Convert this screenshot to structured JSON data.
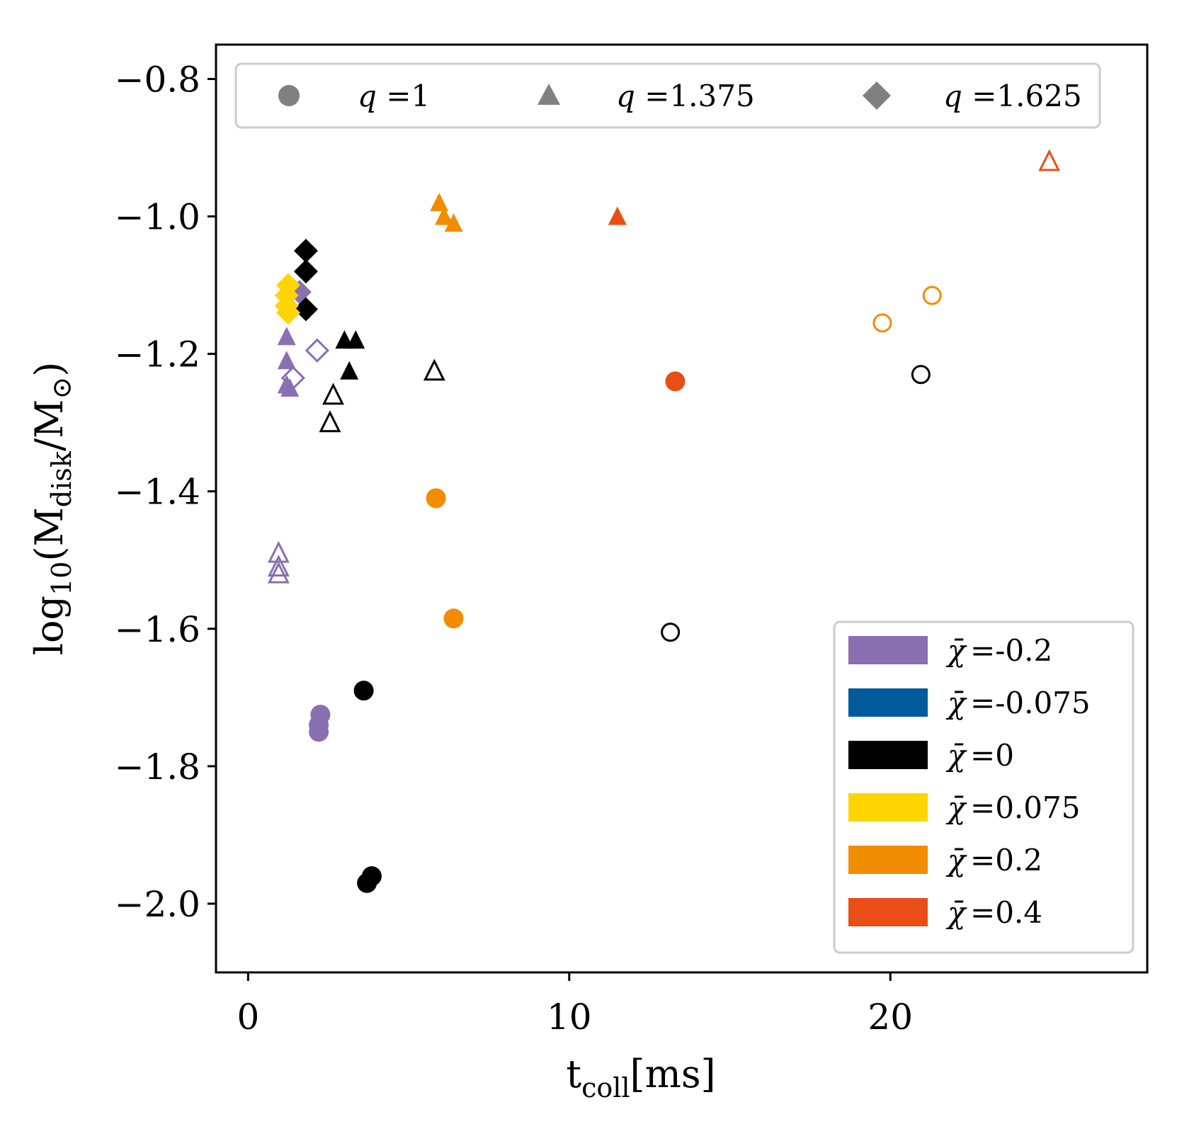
{
  "chart_data": {
    "type": "scatter",
    "title": "",
    "xlabel": "t_coll[ms]",
    "ylabel": "log10(M_disk/M_sun)",
    "xlabel_main": "t",
    "xlabel_sub": "coll",
    "xlabel_unit": "[ms]",
    "ylabel_main": "log",
    "ylabel_sub": "10",
    "ylabel_rest": "(M",
    "ylabel_sub2": "disk",
    "ylabel_rest2": "/M",
    "ylabel_sun": "⊙",
    "ylabel_close": ")",
    "xlim": [
      -1,
      28
    ],
    "ylim": [
      -2.1,
      -0.75
    ],
    "xticks": [
      0,
      10,
      20
    ],
    "xtick_labels": [
      "0",
      "10",
      "20"
    ],
    "yticks": [
      -2.0,
      -1.8,
      -1.6,
      -1.4,
      -1.2,
      -1.0,
      -0.8
    ],
    "ytick_labels": [
      "−2.0",
      "−1.8",
      "−1.6",
      "−1.4",
      "−1.2",
      "−1.0",
      "−0.8"
    ],
    "grid": false,
    "marker_legend": {
      "placement": "top",
      "entries": [
        {
          "marker": "circle",
          "label_var": "q",
          "label_eq": " =",
          "label_val": "1"
        },
        {
          "marker": "triangle",
          "label_var": "q",
          "label_eq": " =",
          "label_val": "1.375"
        },
        {
          "marker": "diamond",
          "label_var": "q",
          "label_eq": " =",
          "label_val": "1.625"
        }
      ]
    },
    "color_legend": {
      "placement": "bottom-right",
      "symbol": "χ̄",
      "entries": [
        {
          "label": "=-0.2",
          "color": "#8a6fb1"
        },
        {
          "label": "=-0.075",
          "color": "#005a9c"
        },
        {
          "label": "=0",
          "color": "#000000"
        },
        {
          "label": "=0.075",
          "color": "#ffd500"
        },
        {
          "label": "=0.2",
          "color": "#f28c00"
        },
        {
          "label": "=0.4",
          "color": "#e94e16"
        }
      ]
    },
    "points": [
      {
        "x": 1.2,
        "y": -1.175,
        "marker": "triangle",
        "color": "#8a6fb1",
        "filled": true
      },
      {
        "x": 1.2,
        "y": -1.21,
        "marker": "triangle",
        "color": "#8a6fb1",
        "filled": true
      },
      {
        "x": 1.2,
        "y": -1.245,
        "marker": "triangle",
        "color": "#8a6fb1",
        "filled": true
      },
      {
        "x": 1.3,
        "y": -1.25,
        "marker": "triangle",
        "color": "#8a6fb1",
        "filled": true
      },
      {
        "x": 1.6,
        "y": -1.11,
        "marker": "diamond",
        "color": "#8a6fb1",
        "filled": true
      },
      {
        "x": 2.15,
        "y": -1.195,
        "marker": "diamond",
        "color": "#8a6fb1",
        "filled": false
      },
      {
        "x": 1.4,
        "y": -1.235,
        "marker": "diamond",
        "color": "#8a6fb1",
        "filled": false
      },
      {
        "x": 0.95,
        "y": -1.49,
        "marker": "triangle",
        "color": "#8a6fb1",
        "filled": false
      },
      {
        "x": 0.95,
        "y": -1.51,
        "marker": "triangle",
        "color": "#8a6fb1",
        "filled": false
      },
      {
        "x": 0.95,
        "y": -1.52,
        "marker": "triangle",
        "color": "#8a6fb1",
        "filled": false
      },
      {
        "x": 2.25,
        "y": -1.725,
        "marker": "circle",
        "color": "#8a6fb1",
        "filled": true
      },
      {
        "x": 2.2,
        "y": -1.74,
        "marker": "circle",
        "color": "#8a6fb1",
        "filled": true
      },
      {
        "x": 2.2,
        "y": -1.75,
        "marker": "circle",
        "color": "#8a6fb1",
        "filled": true
      },
      {
        "x": 1.8,
        "y": -1.05,
        "marker": "diamond",
        "color": "#000000",
        "filled": true
      },
      {
        "x": 1.8,
        "y": -1.08,
        "marker": "diamond",
        "color": "#000000",
        "filled": true
      },
      {
        "x": 1.8,
        "y": -1.135,
        "marker": "diamond",
        "color": "#000000",
        "filled": true
      },
      {
        "x": 3.0,
        "y": -1.18,
        "marker": "triangle",
        "color": "#000000",
        "filled": true
      },
      {
        "x": 3.35,
        "y": -1.18,
        "marker": "triangle",
        "color": "#000000",
        "filled": true
      },
      {
        "x": 3.15,
        "y": -1.225,
        "marker": "triangle",
        "color": "#000000",
        "filled": true
      },
      {
        "x": 2.65,
        "y": -1.26,
        "marker": "triangle",
        "color": "#000000",
        "filled": false
      },
      {
        "x": 2.55,
        "y": -1.3,
        "marker": "triangle",
        "color": "#000000",
        "filled": false
      },
      {
        "x": 5.8,
        "y": -1.225,
        "marker": "triangle",
        "color": "#000000",
        "filled": false
      },
      {
        "x": 3.6,
        "y": -1.69,
        "marker": "circle",
        "color": "#000000",
        "filled": true
      },
      {
        "x": 3.85,
        "y": -1.96,
        "marker": "circle",
        "color": "#000000",
        "filled": true
      },
      {
        "x": 3.7,
        "y": -1.97,
        "marker": "circle",
        "color": "#000000",
        "filled": true
      },
      {
        "x": 13.15,
        "y": -1.605,
        "marker": "circle",
        "color": "#000000",
        "filled": false
      },
      {
        "x": 20.95,
        "y": -1.23,
        "marker": "circle",
        "color": "#000000",
        "filled": false
      },
      {
        "x": 1.25,
        "y": -1.1,
        "marker": "diamond",
        "color": "#ffd500",
        "filled": true
      },
      {
        "x": 1.2,
        "y": -1.115,
        "marker": "diamond",
        "color": "#ffd500",
        "filled": true
      },
      {
        "x": 1.25,
        "y": -1.14,
        "marker": "diamond",
        "color": "#ffd500",
        "filled": true
      },
      {
        "x": 1.2,
        "y": -1.13,
        "marker": "diamond",
        "color": "#ffd500",
        "filled": true
      },
      {
        "x": 5.95,
        "y": -0.98,
        "marker": "triangle",
        "color": "#f28c00",
        "filled": true
      },
      {
        "x": 6.1,
        "y": -1.0,
        "marker": "triangle",
        "color": "#f28c00",
        "filled": true
      },
      {
        "x": 6.4,
        "y": -1.01,
        "marker": "triangle",
        "color": "#f28c00",
        "filled": true
      },
      {
        "x": 5.85,
        "y": -1.41,
        "marker": "circle",
        "color": "#f28c00",
        "filled": true
      },
      {
        "x": 6.4,
        "y": -1.585,
        "marker": "circle",
        "color": "#f28c00",
        "filled": true
      },
      {
        "x": 19.75,
        "y": -1.155,
        "marker": "circle",
        "color": "#f28c00",
        "filled": false
      },
      {
        "x": 21.3,
        "y": -1.115,
        "marker": "circle",
        "color": "#f28c00",
        "filled": false
      },
      {
        "x": 11.5,
        "y": -1.0,
        "marker": "triangle",
        "color": "#e94e16",
        "filled": true
      },
      {
        "x": 13.3,
        "y": -1.24,
        "marker": "circle",
        "color": "#e94e16",
        "filled": true
      },
      {
        "x": 24.95,
        "y": -0.92,
        "marker": "triangle",
        "color": "#e94e16",
        "filled": false
      }
    ]
  }
}
